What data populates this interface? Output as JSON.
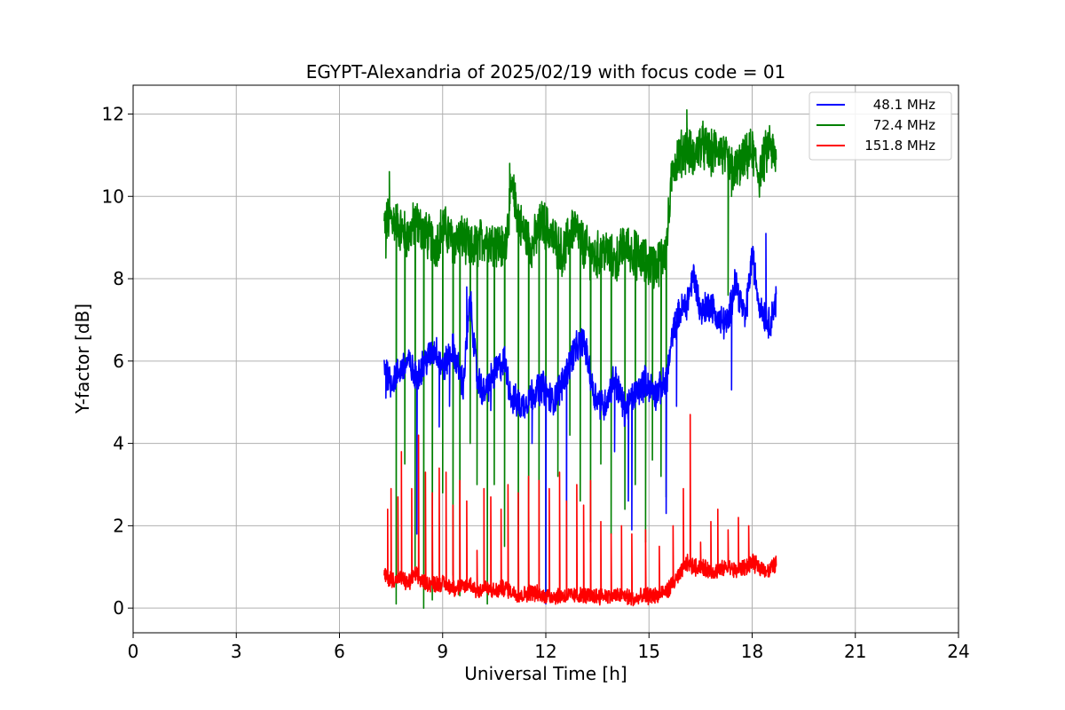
{
  "chart_data": {
    "type": "line",
    "title": "EGYPT-Alexandria of 2025/02/19 with focus code = 01",
    "xlabel": "Universal Time [h]",
    "ylabel": "Y-factor [dB]",
    "xlim": [
      0,
      24
    ],
    "ylim": [
      -0.6,
      12.7
    ],
    "xticks": [
      0,
      3,
      6,
      9,
      12,
      15,
      18,
      21,
      24
    ],
    "yticks": [
      0,
      2,
      4,
      6,
      8,
      10,
      12
    ],
    "grid": true,
    "legend_position": "top-right",
    "series": [
      {
        "name": "48.1 MHz",
        "color": "#0000ff",
        "x": [
          7.3,
          7.5,
          7.8,
          8.0,
          8.2,
          8.5,
          8.8,
          9.0,
          9.3,
          9.6,
          9.8,
          10.0,
          10.2,
          10.5,
          10.8,
          11.0,
          11.3,
          11.6,
          11.9,
          12.2,
          12.5,
          12.8,
          13.1,
          13.4,
          13.7,
          14.0,
          14.3,
          14.6,
          14.9,
          15.2,
          15.5,
          15.7,
          15.9,
          16.1,
          16.3,
          16.5,
          16.8,
          17.0,
          17.3,
          17.5,
          17.8,
          18.0,
          18.2,
          18.5,
          18.7
        ],
        "y": [
          5.9,
          5.5,
          5.8,
          6.0,
          5.6,
          6.0,
          6.3,
          5.8,
          6.3,
          5.4,
          7.5,
          5.6,
          5.2,
          5.7,
          6.0,
          5.1,
          4.9,
          5.2,
          5.4,
          5.0,
          5.5,
          6.2,
          6.5,
          5.2,
          4.9,
          5.6,
          4.8,
          5.2,
          5.5,
          5.2,
          5.5,
          6.7,
          7.2,
          7.4,
          8.1,
          7.2,
          7.4,
          7.0,
          6.9,
          8.0,
          7.0,
          8.6,
          7.4,
          6.9,
          7.5
        ]
      },
      {
        "name": "72.4 MHz",
        "color": "#008000",
        "x": [
          7.3,
          7.5,
          7.8,
          8.0,
          8.2,
          8.5,
          8.8,
          9.0,
          9.3,
          9.6,
          9.8,
          10.0,
          10.2,
          10.5,
          10.8,
          11.0,
          11.3,
          11.6,
          11.9,
          12.2,
          12.5,
          12.8,
          13.1,
          13.4,
          13.7,
          14.0,
          14.3,
          14.6,
          14.9,
          15.2,
          15.5,
          15.7,
          15.9,
          16.1,
          16.3,
          16.5,
          16.8,
          17.0,
          17.3,
          17.5,
          17.8,
          18.0,
          18.2,
          18.5,
          18.7
        ],
        "y": [
          9.3,
          9.5,
          9.2,
          9.0,
          9.4,
          9.1,
          8.8,
          9.3,
          8.9,
          9.0,
          8.7,
          8.8,
          9.0,
          8.9,
          8.7,
          10.2,
          9.2,
          8.8,
          9.4,
          9.0,
          8.6,
          9.3,
          8.8,
          8.5,
          8.7,
          8.4,
          8.8,
          8.6,
          8.4,
          8.3,
          8.7,
          10.8,
          11.0,
          11.2,
          10.9,
          11.3,
          11.0,
          11.2,
          10.8,
          10.6,
          10.9,
          11.1,
          10.5,
          11.3,
          10.8
        ]
      },
      {
        "name": "151.8 MHz",
        "color": "#ff0000",
        "x": [
          7.3,
          7.5,
          7.8,
          8.0,
          8.2,
          8.5,
          8.8,
          9.0,
          9.3,
          9.6,
          9.8,
          10.0,
          10.2,
          10.5,
          10.8,
          11.0,
          11.3,
          11.6,
          11.9,
          12.2,
          12.5,
          12.8,
          13.1,
          13.4,
          13.7,
          14.0,
          14.3,
          14.6,
          14.9,
          15.2,
          15.5,
          15.7,
          15.9,
          16.1,
          16.3,
          16.5,
          16.8,
          17.0,
          17.3,
          17.5,
          17.8,
          18.0,
          18.2,
          18.5,
          18.7
        ],
        "y": [
          0.8,
          0.7,
          0.7,
          0.6,
          0.8,
          0.6,
          0.6,
          0.6,
          0.5,
          0.5,
          0.6,
          0.4,
          0.5,
          0.4,
          0.5,
          0.4,
          0.3,
          0.4,
          0.3,
          0.3,
          0.3,
          0.3,
          0.3,
          0.3,
          0.3,
          0.3,
          0.3,
          0.2,
          0.3,
          0.3,
          0.4,
          0.6,
          0.8,
          1.1,
          1.0,
          1.0,
          0.9,
          0.9,
          1.0,
          0.9,
          1.0,
          1.1,
          1.0,
          0.9,
          1.1
        ]
      }
    ],
    "spikes": {
      "blue": [
        [
          7.35,
          5.1
        ],
        [
          8.25,
          1.8
        ],
        [
          8.9,
          4.4
        ],
        [
          9.2,
          4.9
        ],
        [
          9.7,
          7.8
        ],
        [
          10.4,
          4.8
        ],
        [
          11.6,
          4.0
        ],
        [
          12.0,
          0.1
        ],
        [
          12.6,
          0.2
        ],
        [
          14.0,
          3.8
        ],
        [
          14.4,
          2.6
        ],
        [
          14.5,
          1.9
        ],
        [
          15.5,
          2.3
        ],
        [
          15.8,
          4.9
        ],
        [
          17.4,
          5.3
        ],
        [
          18.4,
          9.1
        ]
      ],
      "green": [
        [
          7.35,
          8.5
        ],
        [
          7.45,
          10.6
        ],
        [
          7.65,
          0.1
        ],
        [
          7.9,
          3.5
        ],
        [
          8.2,
          0.9
        ],
        [
          8.45,
          0.0
        ],
        [
          8.7,
          0.2
        ],
        [
          9.0,
          2.8
        ],
        [
          9.3,
          0.8
        ],
        [
          9.5,
          0.3
        ],
        [
          9.8,
          4.0
        ],
        [
          10.0,
          3.0
        ],
        [
          10.3,
          0.1
        ],
        [
          10.5,
          3.0
        ],
        [
          10.8,
          1.5
        ],
        [
          10.95,
          10.8
        ],
        [
          11.2,
          0.3
        ],
        [
          11.5,
          0.4
        ],
        [
          11.8,
          0.8
        ],
        [
          12.0,
          0.4
        ],
        [
          12.35,
          3.2
        ],
        [
          12.7,
          4.2
        ],
        [
          13.0,
          2.6
        ],
        [
          13.3,
          1.6
        ],
        [
          13.6,
          3.5
        ],
        [
          13.9,
          1.8
        ],
        [
          14.3,
          2.4
        ],
        [
          14.6,
          3.0
        ],
        [
          14.9,
          1.6
        ],
        [
          15.1,
          3.6
        ],
        [
          15.35,
          3.2
        ],
        [
          15.5,
          2.7
        ],
        [
          16.1,
          12.1
        ],
        [
          17.3,
          7.6
        ],
        [
          17.4,
          10.0
        ]
      ],
      "red": [
        [
          7.4,
          2.4
        ],
        [
          7.5,
          2.9
        ],
        [
          7.7,
          2.7
        ],
        [
          7.8,
          3.8
        ],
        [
          8.1,
          2.9
        ],
        [
          8.3,
          4.2
        ],
        [
          8.5,
          3.3
        ],
        [
          8.7,
          2.8
        ],
        [
          8.9,
          3.4
        ],
        [
          9.1,
          3.3
        ],
        [
          9.3,
          2.5
        ],
        [
          9.5,
          3.1
        ],
        [
          9.7,
          2.6
        ],
        [
          10.0,
          1.4
        ],
        [
          10.2,
          2.9
        ],
        [
          10.4,
          2.7
        ],
        [
          10.7,
          2.4
        ],
        [
          10.9,
          3.0
        ],
        [
          11.2,
          2.8
        ],
        [
          11.5,
          3.2
        ],
        [
          11.8,
          3.1
        ],
        [
          12.1,
          2.9
        ],
        [
          12.4,
          3.3
        ],
        [
          12.6,
          2.6
        ],
        [
          12.9,
          3.0
        ],
        [
          13.1,
          2.5
        ],
        [
          13.3,
          3.1
        ],
        [
          13.6,
          2.1
        ],
        [
          13.9,
          1.8
        ],
        [
          14.2,
          2.0
        ],
        [
          14.5,
          1.8
        ],
        [
          14.9,
          1.9
        ],
        [
          15.3,
          1.5
        ],
        [
          15.7,
          2.0
        ],
        [
          16.0,
          2.9
        ],
        [
          16.2,
          4.7
        ],
        [
          16.5,
          1.6
        ],
        [
          16.8,
          2.1
        ],
        [
          17.0,
          2.4
        ],
        [
          17.3,
          1.9
        ],
        [
          17.6,
          2.2
        ],
        [
          17.9,
          2.0
        ]
      ]
    }
  }
}
